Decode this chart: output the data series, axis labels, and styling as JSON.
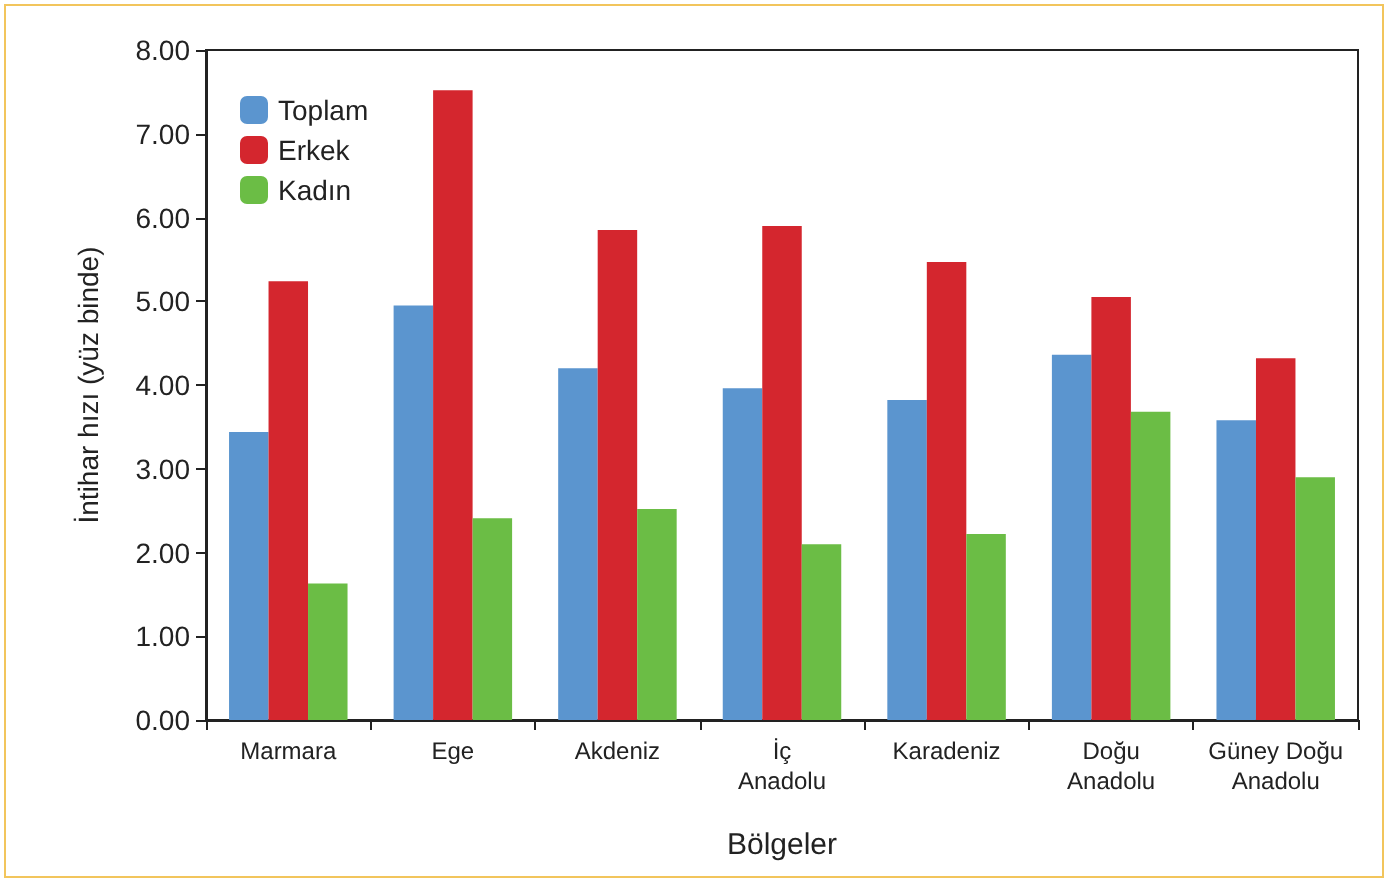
{
  "chart_data": {
    "type": "bar",
    "xlabel": "Bölgeler",
    "ylabel": "İntihar hızı (yüz binde)",
    "categories": [
      "Marmara",
      "Ege",
      "Akdeniz",
      "İç\nAnadolu",
      "Karadeniz",
      "Doğu\nAnadolu",
      "Güney Doğu\nAnadolu"
    ],
    "series": [
      {
        "name": "Toplam",
        "color": "#5b95cf",
        "values": [
          3.44,
          4.95,
          4.2,
          3.96,
          3.82,
          4.36,
          3.58
        ]
      },
      {
        "name": "Erkek",
        "color": "#d4262e",
        "values": [
          5.24,
          7.52,
          5.85,
          5.9,
          5.47,
          5.05,
          4.32
        ]
      },
      {
        "name": "Kadın",
        "color": "#6bbd45",
        "values": [
          1.63,
          2.41,
          2.52,
          2.1,
          2.22,
          3.68,
          2.9
        ]
      }
    ],
    "ylim": [
      0,
      8
    ],
    "yticks": [
      {
        "value": 0,
        "label": "0.00"
      },
      {
        "value": 1,
        "label": "1.00"
      },
      {
        "value": 2,
        "label": "2.00"
      },
      {
        "value": 3,
        "label": "3.00"
      },
      {
        "value": 4,
        "label": "4.00"
      },
      {
        "value": 5,
        "label": "5.00"
      },
      {
        "value": 6,
        "label": "6.00"
      },
      {
        "value": 7,
        "label": "7.00"
      },
      {
        "value": 8,
        "label": "8.00"
      }
    ],
    "grid": false,
    "legend": "top left"
  }
}
